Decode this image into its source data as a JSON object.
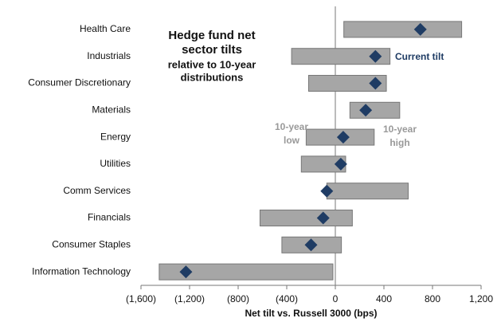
{
  "chart_data": {
    "type": "range",
    "title": [
      "Hedge fund net",
      "sector tilts"
    ],
    "subtitle": [
      "relative to 10-year",
      "distributions"
    ],
    "x_label": "Net tilt vs. Russell 3000 (bps)",
    "categories": [
      "Health Care",
      "Industrials",
      "Consumer Discretionary",
      "Materials",
      "Energy",
      "Utilities",
      "Comm Services",
      "Financials",
      "Consumer Staples",
      "Information Technology"
    ],
    "low": {
      "name": [
        "10-year",
        "low"
      ],
      "values": [
        70,
        -360,
        -220,
        120,
        -240,
        -280,
        -70,
        -620,
        -440,
        -1450
      ]
    },
    "high": {
      "name": [
        "10-year",
        "high"
      ],
      "values": [
        1040,
        450,
        420,
        530,
        320,
        85,
        600,
        140,
        50,
        -20
      ]
    },
    "current": {
      "name": "Current tilt",
      "color": "#1f3c64",
      "values": [
        700,
        330,
        330,
        250,
        65,
        45,
        -70,
        -100,
        -200,
        -1230
      ]
    },
    "bar_color": "#a6a6a6",
    "xlim": [
      -1600,
      1200
    ],
    "xticks": [
      {
        "value": -1600,
        "label": "(1,600)"
      },
      {
        "value": -1200,
        "label": "(1,200)"
      },
      {
        "value": -800,
        "label": "(800)"
      },
      {
        "value": -400,
        "label": "(400)"
      },
      0,
      400,
      800,
      {
        "value": 1200,
        "label": "1,200"
      }
    ]
  }
}
